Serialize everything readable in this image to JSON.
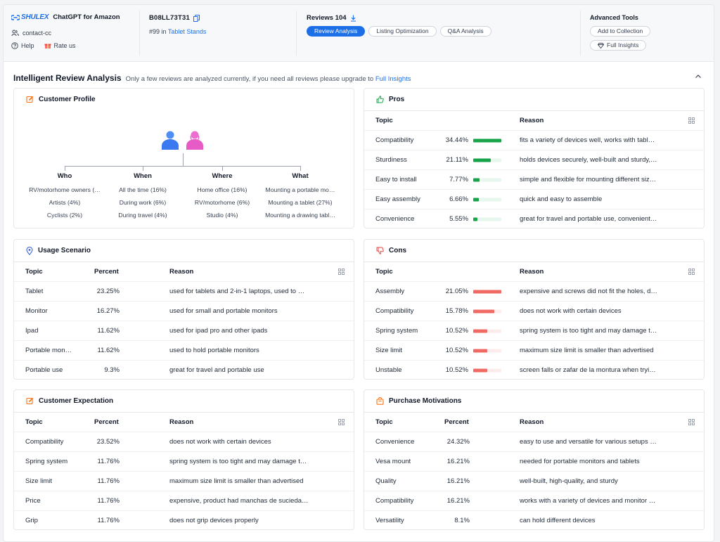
{
  "header": {
    "brand": "SHULEX",
    "app_title": "ChatGPT for Amazon",
    "user": "contact-cc",
    "help": "Help",
    "rate": "Rate us",
    "asin": "B08LL73T31",
    "rank_prefix": "#99 in",
    "rank_category": "Tablet Stands",
    "reviews_label": "Reviews 104",
    "tabs": [
      {
        "label": "Review Analysis",
        "active": true
      },
      {
        "label": "Listing Optimization",
        "active": false
      },
      {
        "label": "Q&A Analysis",
        "active": false
      }
    ],
    "advanced_title": "Advanced Tools",
    "add_collection": "Add to Collection",
    "full_insights": "Full Insights"
  },
  "section": {
    "title": "Intelligent Review Analysis",
    "note": "Only a few reviews are analyzed currently, if you need all reviews please upgrade to",
    "note_link": "Full Insights"
  },
  "colors": {
    "accent": "#1d6fe8",
    "pros_bar": "#16a34a",
    "pros_track": "#e7f7ee",
    "cons_bar": "#ef6a63",
    "cons_track": "#fdeceb",
    "icon_orange": "#f97316"
  },
  "profile": {
    "title": "Customer Profile",
    "columns": [
      {
        "head": "Who",
        "items": [
          "RV/motorhome owners (…",
          "Artists (4%)",
          "Cyclists (2%)"
        ]
      },
      {
        "head": "When",
        "items": [
          "All the time (16%)",
          "During work (6%)",
          "During travel (4%)"
        ]
      },
      {
        "head": "Where",
        "items": [
          "Home office (16%)",
          "RV/motorhome (6%)",
          "Studio (4%)"
        ]
      },
      {
        "head": "What",
        "items": [
          "Mounting a portable mo…",
          "Mounting a tablet (27%)",
          "Mounting a drawing tabl…"
        ]
      }
    ]
  },
  "pros": {
    "title": "Pros",
    "headers": {
      "topic": "Topic",
      "reason": "Reason"
    },
    "rows": [
      {
        "topic": "Compatibility",
        "pct": "34.44%",
        "value": 34.44,
        "reason": "fits a variety of devices well, works with tabl…"
      },
      {
        "topic": "Sturdiness",
        "pct": "21.11%",
        "value": 21.11,
        "reason": "holds devices securely, well-built and sturdy,…"
      },
      {
        "topic": "Easy to install",
        "pct": "7.77%",
        "value": 7.77,
        "reason": "simple and flexible for mounting different siz…"
      },
      {
        "topic": "Easy assembly",
        "pct": "6.66%",
        "value": 6.66,
        "reason": "quick and easy to assemble"
      },
      {
        "topic": "Convenience",
        "pct": "5.55%",
        "value": 5.55,
        "reason": "great for travel and portable use, convenient…"
      }
    ]
  },
  "usage": {
    "title": "Usage Scenario",
    "headers": {
      "topic": "Topic",
      "percent": "Percent",
      "reason": "Reason"
    },
    "rows": [
      {
        "topic": "Tablet",
        "pct": "23.25%",
        "reason": "used for tablets and 2-in-1 laptops, used to …"
      },
      {
        "topic": "Monitor",
        "pct": "16.27%",
        "reason": "used for small and portable monitors"
      },
      {
        "topic": "Ipad",
        "pct": "11.62%",
        "reason": "used for ipad pro and other ipads"
      },
      {
        "topic": "Portable mon…",
        "pct": "11.62%",
        "reason": "used to hold portable monitors"
      },
      {
        "topic": "Portable use",
        "pct": "9.3%",
        "reason": "great for travel and portable use"
      }
    ]
  },
  "cons": {
    "title": "Cons",
    "headers": {
      "topic": "Topic",
      "reason": "Reason"
    },
    "rows": [
      {
        "topic": "Assembly",
        "pct": "21.05%",
        "value": 21.05,
        "reason": "expensive and screws did not fit the holes, d…"
      },
      {
        "topic": "Compatibility",
        "pct": "15.78%",
        "value": 15.78,
        "reason": "does not work with certain devices"
      },
      {
        "topic": "Spring system",
        "pct": "10.52%",
        "value": 10.52,
        "reason": "spring system is too tight and may damage t…"
      },
      {
        "topic": "Size limit",
        "pct": "10.52%",
        "value": 10.52,
        "reason": "maximum size limit is smaller than advertised"
      },
      {
        "topic": "Unstable",
        "pct": "10.52%",
        "value": 10.52,
        "reason": "screen falls or zafar de la montura when tryi…"
      }
    ]
  },
  "expectation": {
    "title": "Customer Expectation",
    "headers": {
      "topic": "Topic",
      "percent": "Percent",
      "reason": "Reason"
    },
    "rows": [
      {
        "topic": "Compatibility",
        "pct": "23.52%",
        "reason": "does not work with certain devices"
      },
      {
        "topic": "Spring system",
        "pct": "11.76%",
        "reason": "spring system is too tight and may damage t…"
      },
      {
        "topic": "Size limit",
        "pct": "11.76%",
        "reason": "maximum size limit is smaller than advertised"
      },
      {
        "topic": "Price",
        "pct": "11.76%",
        "reason": "expensive, product had manchas de sucieda…"
      },
      {
        "topic": "Grip",
        "pct": "11.76%",
        "reason": "does not grip devices properly"
      }
    ]
  },
  "motivations": {
    "title": "Purchase Motivations",
    "headers": {
      "topic": "Topic",
      "percent": "Percent",
      "reason": "Reason"
    },
    "rows": [
      {
        "topic": "Convenience",
        "pct": "24.32%",
        "reason": "easy to use and versatile for various setups …"
      },
      {
        "topic": "Vesa mount",
        "pct": "16.21%",
        "reason": "needed for portable monitors and tablets"
      },
      {
        "topic": "Quality",
        "pct": "16.21%",
        "reason": "well-built, high-quality, and sturdy"
      },
      {
        "topic": "Compatibility",
        "pct": "16.21%",
        "reason": "works with a variety of devices and monitor …"
      },
      {
        "topic": "Versatility",
        "pct": "8.1%",
        "reason": "can hold different devices"
      }
    ]
  }
}
